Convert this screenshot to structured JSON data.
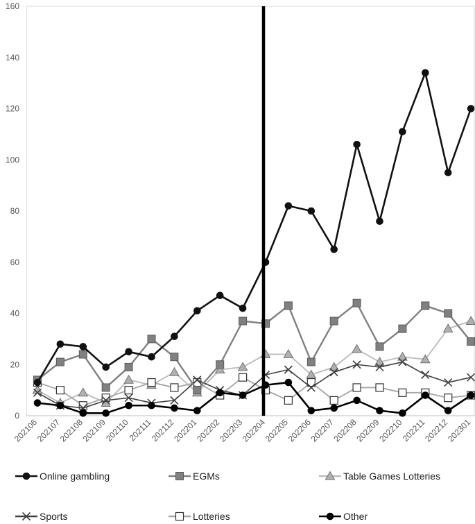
{
  "chart_data": {
    "type": "line",
    "title": "",
    "xlabel": "",
    "ylabel": "",
    "ylim": [
      0,
      160
    ],
    "y_ticks": [
      "0",
      "20",
      "40",
      "60",
      "80",
      "100",
      "120",
      "140",
      "160"
    ],
    "categories": [
      "202106",
      "202107",
      "202108",
      "202109",
      "202110",
      "202111",
      "202112",
      "202201",
      "202202",
      "202203",
      "202204",
      "202205",
      "202206",
      "202207",
      "202208",
      "202209",
      "202210",
      "202211",
      "202212",
      "202301"
    ],
    "vertical_marker_category": "202204",
    "grid": false,
    "legend_position": "bottom",
    "series": [
      {
        "name": "Online gambling",
        "color": "#111111",
        "marker": "circle-filled",
        "values": [
          13,
          28,
          27,
          19,
          25,
          23,
          31,
          41,
          47,
          42,
          60,
          82,
          80,
          65,
          106,
          76,
          111,
          134,
          95,
          120
        ]
      },
      {
        "name": "EGMs",
        "color": "#808080",
        "marker": "square-filled",
        "values": [
          14,
          21,
          24,
          11,
          19,
          30,
          23,
          10,
          20,
          37,
          36,
          43,
          21,
          37,
          44,
          27,
          34,
          43,
          40,
          29
        ]
      },
      {
        "name": "Table Games Lotteries",
        "color": "#bfbfbf",
        "marker": "triangle",
        "values": [
          10,
          5,
          9,
          5,
          14,
          12,
          17,
          9,
          18,
          19,
          24,
          24,
          16,
          19,
          26,
          21,
          23,
          22,
          34,
          37
        ]
      },
      {
        "name": "Sports",
        "color": "#404040",
        "marker": "x",
        "values": [
          9,
          4,
          3,
          6,
          7,
          5,
          6,
          14,
          10,
          8,
          16,
          18,
          11,
          17,
          20,
          19,
          21,
          16,
          13,
          15
        ]
      },
      {
        "name": "Lotteries",
        "color": "#a6a6a6",
        "marker": "square-open",
        "values": [
          13,
          10,
          4,
          7,
          10,
          13,
          11,
          13,
          8,
          15,
          10,
          6,
          13,
          6,
          11,
          11,
          9,
          9,
          7,
          8
        ]
      },
      {
        "name": "Other",
        "color": "#000000",
        "marker": "circle-filled",
        "values": [
          5,
          4,
          1,
          1,
          4,
          4,
          3,
          2,
          9,
          8,
          12,
          13,
          2,
          3,
          6,
          2,
          1,
          8,
          2,
          8
        ]
      }
    ]
  }
}
